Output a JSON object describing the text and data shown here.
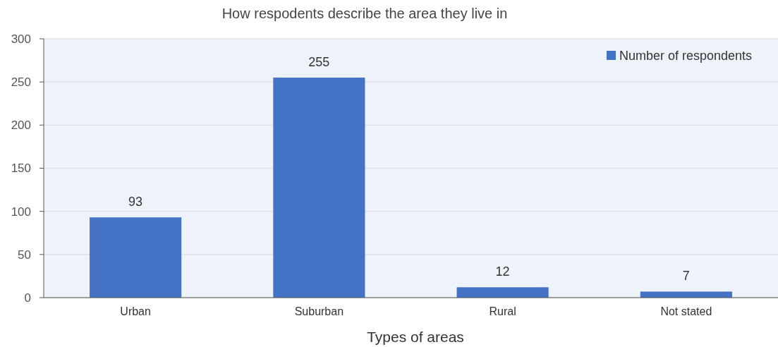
{
  "chart_data": {
    "type": "bar",
    "title": "How respodents describe the area they live in",
    "xlabel": "Types of areas",
    "categories": [
      "Urban",
      "Suburban",
      "Rural",
      "Not stated"
    ],
    "series": [
      {
        "name": "Number of respondents",
        "color": "#4472c4",
        "values": [
          93,
          255,
          12,
          7
        ]
      }
    ],
    "ylim": [
      0,
      300
    ],
    "yticks": [
      0,
      50,
      100,
      150,
      200,
      250,
      300
    ],
    "grid": "y",
    "legend": "top right",
    "data_labels": true
  }
}
